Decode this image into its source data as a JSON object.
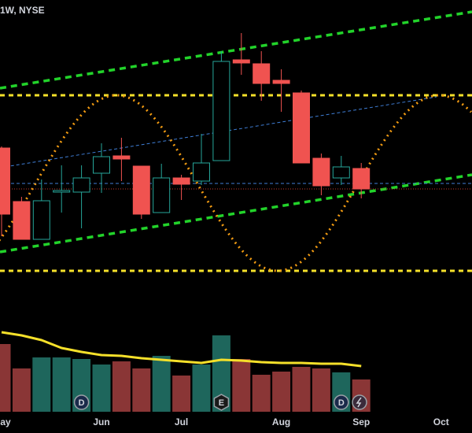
{
  "chart_data": {
    "type": "candlestick",
    "title": "1W, NYSE",
    "categories": [
      "May",
      null,
      null,
      null,
      null,
      "Jun",
      null,
      null,
      null,
      "Jul",
      null,
      null,
      null,
      null,
      "Aug",
      null,
      null,
      null,
      "Sep",
      null,
      null,
      null,
      "Oct"
    ],
    "open": [
      212,
      144,
      96,
      156,
      156,
      180,
      202,
      189,
      130,
      174,
      170,
      196,
      324,
      319,
      298,
      282,
      199,
      174,
      186,
      null,
      null,
      null,
      null
    ],
    "high": [
      214,
      150,
      172,
      190,
      190,
      218,
      225,
      189,
      192,
      178,
      230,
      335,
      358,
      335,
      312,
      285,
      205,
      202,
      193,
      null,
      null,
      null,
      null
    ],
    "low": [
      100,
      96,
      96,
      130,
      110,
      155,
      170,
      122,
      130,
      146,
      165,
      196,
      305,
      272,
      258,
      193,
      152,
      165,
      148,
      null,
      null,
      null,
      null
    ],
    "close": [
      128,
      96,
      145,
      158,
      174,
      201,
      198,
      128,
      174,
      166,
      193,
      322,
      320,
      294,
      294,
      193,
      164,
      188,
      160,
      null,
      null,
      null,
      null
    ],
    "ylim": [
      0,
      400
    ],
    "up_color": "#26a69a",
    "down_color": "#f05350",
    "volume": [
      86,
      55,
      69,
      69,
      67,
      60,
      64,
      55,
      71,
      46,
      60,
      97,
      67,
      47,
      51,
      57,
      55,
      50,
      41,
      null,
      null,
      null,
      null
    ],
    "volume_ma": [
      101,
      97,
      91,
      81,
      76,
      72,
      71,
      68,
      66,
      64,
      62,
      66,
      65,
      63,
      62,
      62,
      61,
      61,
      58,
      null,
      null,
      null,
      null
    ],
    "volume_lim": [
      0,
      100
    ],
    "volume_up_color": "#1e665c",
    "volume_down_color": "#8a3636",
    "volume_ma_color": "#f5e02a",
    "events": [
      {
        "index": 4,
        "label": "D"
      },
      {
        "index": 11,
        "label": "E"
      },
      {
        "index": 17,
        "label": "D"
      }
    ]
  }
}
